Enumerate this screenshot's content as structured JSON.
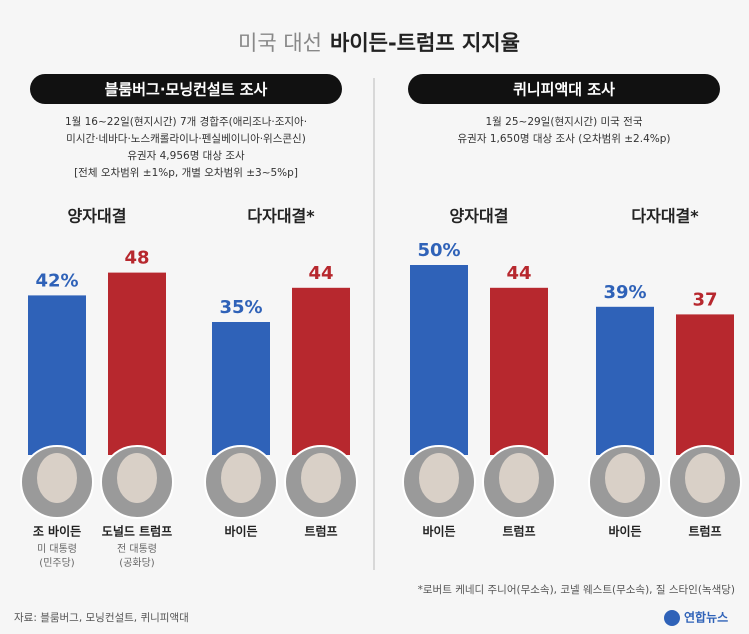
{
  "title_prefix": "미국 대선",
  "title_main": "바이든-트럼프 지지율",
  "surveys": [
    {
      "header": "블룸버그·모닝컨설트 조사",
      "description": [
        "1월 16~22일(현지시간) 7개 경합주(애리조나·조지아·",
        "미시간·네바다·노스캐롤라이나·펜실베이니아·위스콘신)",
        "유권자 4,956명 대상 조사",
        "[전체 오차범위 ±1%p, 개별 오차범위 ±3~5%p]"
      ]
    },
    {
      "header": "퀴니피액대 조사",
      "description": [
        "1월 25~29일(현지시간) 미국 전국",
        "유권자 1,650명 대상 조사 (오차범위 ±2.4%p)"
      ]
    }
  ],
  "chart_data": [
    {
      "type": "bar",
      "title": "양자대결",
      "categories": [
        "조 바이든",
        "도널드 트럼프"
      ],
      "subtitles": [
        "미 대통령",
        "전 대통령"
      ],
      "parties": [
        "(민주당)",
        "(공화당)"
      ],
      "values": [
        42,
        48
      ],
      "value_labels": [
        "42%",
        "48"
      ],
      "colors": [
        "#2f62b8",
        "#b7282e"
      ]
    },
    {
      "type": "bar",
      "title": "다자대결*",
      "categories": [
        "바이든",
        "트럼프"
      ],
      "values": [
        35,
        44
      ],
      "value_labels": [
        "35%",
        "44"
      ],
      "colors": [
        "#2f62b8",
        "#b7282e"
      ]
    },
    {
      "type": "bar",
      "title": "양자대결",
      "categories": [
        "바이든",
        "트럼프"
      ],
      "values": [
        50,
        44
      ],
      "value_labels": [
        "50%",
        "44"
      ],
      "colors": [
        "#2f62b8",
        "#b7282e"
      ]
    },
    {
      "type": "bar",
      "title": "다자대결*",
      "categories": [
        "바이든",
        "트럼프"
      ],
      "values": [
        39,
        37
      ],
      "value_labels": [
        "39%",
        "37"
      ],
      "colors": [
        "#2f62b8",
        "#b7282e"
      ]
    }
  ],
  "footnote": "*로버트 케네디 주니어(무소속), 코넬 웨스트(무소속), 질 스타인(녹색당)",
  "source": "자료: 블룸버그, 모닝컨설트, 퀴니피액대",
  "logo": "연합뉴스"
}
